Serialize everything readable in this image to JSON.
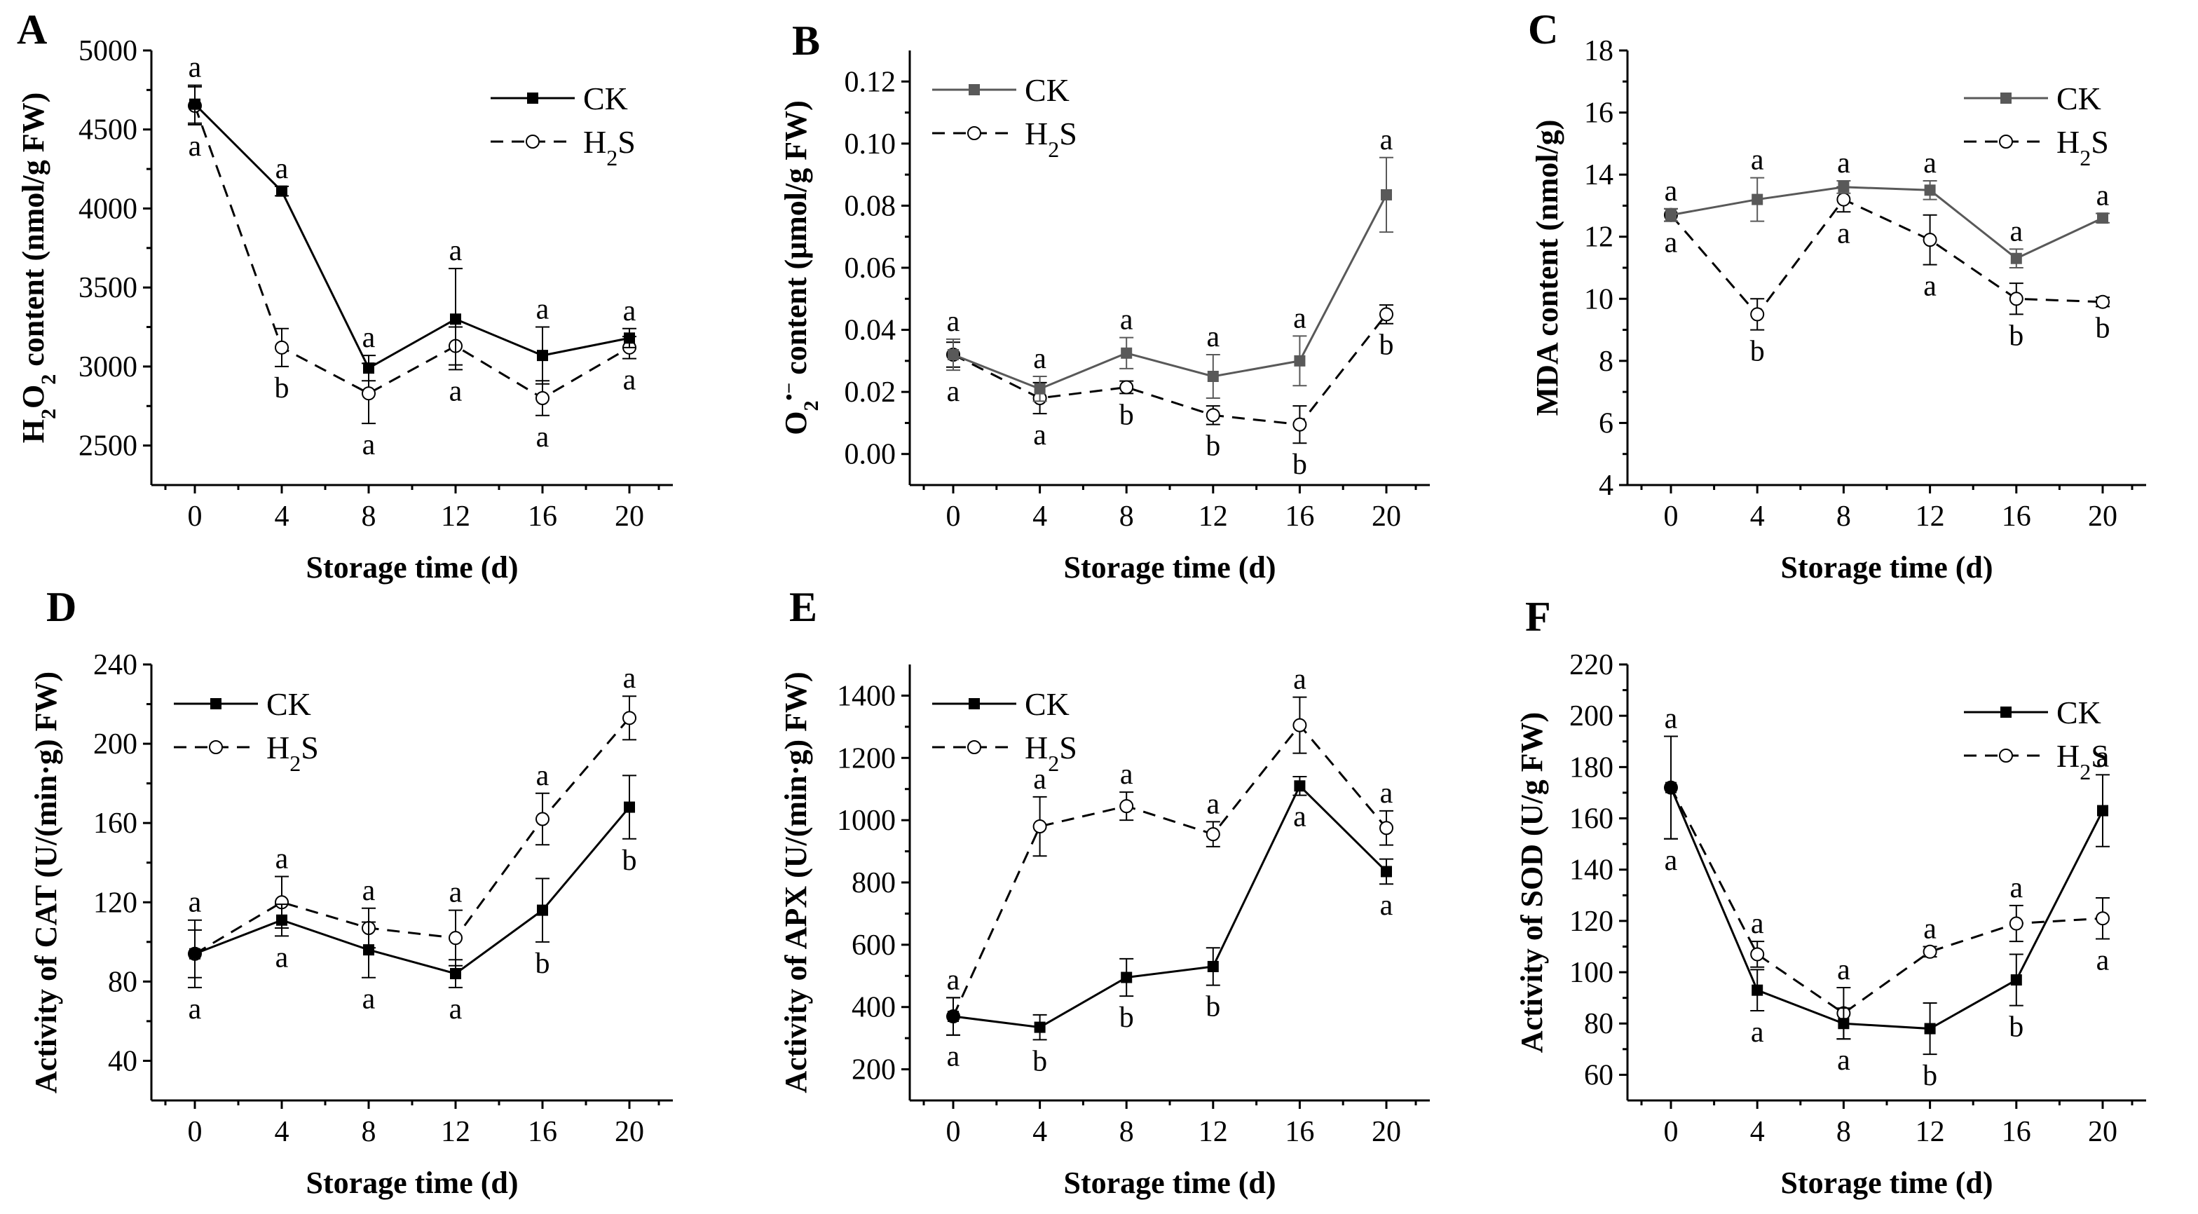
{
  "chart_data": [
    {
      "panel": "A",
      "type": "line",
      "ylabel_main": "H",
      "ylabel_sub1": "2",
      "ylabel_mid": "O",
      "ylabel_sub2": "2",
      "ylabel_rest": "  content (nmol/g FW)",
      "xlabel": "Storage time (d)",
      "x": [
        0,
        4,
        8,
        12,
        16,
        20
      ],
      "ylim": [
        2250,
        5000
      ],
      "yticks": [
        2500,
        3000,
        3500,
        4000,
        4500,
        5000
      ],
      "ytick_labels": [
        "2500",
        "3000",
        "3500",
        "4000",
        "4500",
        "5000"
      ],
      "legend": {
        "position": "top-right",
        "ck_label": "CK",
        "h2s_main": "H",
        "h2s_sub": "2",
        "h2s_rest": "S"
      },
      "ck_color": "#000000",
      "series": [
        {
          "name": "CK",
          "values": [
            4660,
            4110,
            2990,
            3300,
            3070,
            3180
          ],
          "errors": [
            120,
            30,
            80,
            320,
            180,
            60
          ],
          "letters": [
            "a",
            "a",
            "a",
            "a",
            "a",
            "a"
          ]
        },
        {
          "name": "H2S",
          "values": [
            4650,
            3120,
            2830,
            3130,
            2800,
            3120
          ],
          "errors": [
            120,
            120,
            190,
            120,
            110,
            70
          ],
          "letters": [
            "a",
            "b",
            "a",
            "a",
            "a",
            "a"
          ]
        }
      ]
    },
    {
      "panel": "B",
      "type": "line",
      "ylabel_main": "O",
      "ylabel_sub1": "2",
      "ylabel_sup": "•−",
      "ylabel_rest": " content (μmol/g FW)",
      "xlabel": "Storage time (d)",
      "x": [
        0,
        4,
        8,
        12,
        16,
        20
      ],
      "ylim": [
        -0.01,
        0.13
      ],
      "yticks": [
        0.0,
        0.02,
        0.04,
        0.06,
        0.08,
        0.1,
        0.12
      ],
      "ytick_labels": [
        "0.00",
        "0.02",
        "0.04",
        "0.06",
        "0.08",
        "0.10",
        "0.12"
      ],
      "legend": {
        "position": "top-left",
        "ck_label": "CK",
        "h2s_main": "H",
        "h2s_sub": "2",
        "h2s_rest": "S"
      },
      "ck_color": "#595959",
      "series": [
        {
          "name": "CK",
          "values": [
            0.032,
            0.021,
            0.0325,
            0.025,
            0.03,
            0.0835
          ],
          "errors": [
            0.005,
            0.004,
            0.005,
            0.007,
            0.008,
            0.012
          ],
          "letters": [
            "a",
            "a",
            "a",
            "a",
            "a",
            "a"
          ]
        },
        {
          "name": "H2S",
          "values": [
            0.032,
            0.018,
            0.0215,
            0.0125,
            0.0095,
            0.045
          ],
          "errors": [
            0.004,
            0.005,
            0.002,
            0.003,
            0.006,
            0.003
          ],
          "letters": [
            "a",
            "a",
            "b",
            "b",
            "b",
            "b"
          ]
        }
      ]
    },
    {
      "panel": "C",
      "type": "line",
      "ylabel": "MDA content (nmol/g)",
      "xlabel": "Storage time (d)",
      "x": [
        0,
        4,
        8,
        12,
        16,
        20
      ],
      "ylim": [
        4,
        18
      ],
      "yticks": [
        4,
        6,
        8,
        10,
        12,
        14,
        16,
        18
      ],
      "ytick_labels": [
        "4",
        "6",
        "8",
        "10",
        "12",
        "14",
        "16",
        "18"
      ],
      "legend": {
        "position": "top-right",
        "ck_label": "CK",
        "h2s_main": "H",
        "h2s_sub": "2",
        "h2s_rest": "S"
      },
      "ck_color": "#595959",
      "series": [
        {
          "name": "CK",
          "values": [
            12.7,
            13.2,
            13.6,
            13.5,
            11.3,
            12.6
          ],
          "errors": [
            0.2,
            0.7,
            0.2,
            0.3,
            0.3,
            0.15
          ],
          "letters": [
            "a",
            "a",
            "a",
            "a",
            "a",
            "a"
          ]
        },
        {
          "name": "H2S",
          "values": [
            12.7,
            9.5,
            13.2,
            11.9,
            10.0,
            9.9
          ],
          "errors": [
            0.2,
            0.5,
            0.4,
            0.8,
            0.5,
            0.15
          ],
          "letters": [
            "a",
            "b",
            "a",
            "a",
            "b",
            "b"
          ]
        }
      ]
    },
    {
      "panel": "D",
      "type": "line",
      "ylabel": "Activity of CAT (U/(min·g) FW)",
      "xlabel": "Storage time (d)",
      "x": [
        0,
        4,
        8,
        12,
        16,
        20
      ],
      "ylim": [
        20,
        240
      ],
      "yticks": [
        40,
        80,
        120,
        160,
        200,
        240
      ],
      "ytick_labels": [
        "40",
        "80",
        "120",
        "160",
        "200",
        "240"
      ],
      "legend": {
        "position": "top-left",
        "ck_label": "CK",
        "h2s_main": "H",
        "h2s_sub": "2",
        "h2s_rest": "S"
      },
      "ck_color": "#000000",
      "series": [
        {
          "name": "CK",
          "values": [
            94,
            111,
            96,
            84,
            116,
            168
          ],
          "errors": [
            17,
            8,
            14,
            7,
            16,
            16
          ],
          "letters": [
            "a",
            "a",
            "a",
            "a",
            "b",
            "b"
          ]
        },
        {
          "name": "H2S",
          "values": [
            94,
            120,
            107,
            102,
            162,
            213
          ],
          "errors": [
            12,
            13,
            10,
            14,
            13,
            11
          ],
          "letters": [
            "a",
            "a",
            "a",
            "a",
            "a",
            "a"
          ]
        }
      ]
    },
    {
      "panel": "E",
      "type": "line",
      "ylabel": "Activity of APX (U/(min·g) FW)",
      "xlabel": "Storage time (d)",
      "x": [
        0,
        4,
        8,
        12,
        16,
        20
      ],
      "ylim": [
        100,
        1500
      ],
      "yticks": [
        200,
        400,
        600,
        800,
        1000,
        1200,
        1400
      ],
      "ytick_labels": [
        "200",
        "400",
        "600",
        "800",
        "1000",
        "1200",
        "1400"
      ],
      "legend": {
        "position": "top-left",
        "ck_label": "CK",
        "h2s_main": "H",
        "h2s_sub": "2",
        "h2s_rest": "S"
      },
      "ck_color": "#000000",
      "series": [
        {
          "name": "CK",
          "values": [
            370,
            335,
            495,
            530,
            1110,
            835
          ],
          "errors": [
            60,
            40,
            60,
            60,
            30,
            40
          ],
          "letters": [
            "a",
            "b",
            "b",
            "b",
            "a",
            "a"
          ]
        },
        {
          "name": "H2S",
          "values": [
            370,
            980,
            1045,
            955,
            1305,
            975
          ],
          "errors": [
            60,
            95,
            45,
            40,
            90,
            55
          ],
          "letters": [
            "a",
            "a",
            "a",
            "a",
            "a",
            "a"
          ]
        }
      ]
    },
    {
      "panel": "F",
      "type": "line",
      "ylabel": "Activity of SOD (U/g FW)",
      "xlabel": "Storage time (d)",
      "x": [
        0,
        4,
        8,
        12,
        16,
        20
      ],
      "ylim": [
        50,
        220
      ],
      "yticks": [
        60,
        80,
        100,
        120,
        140,
        160,
        180,
        200,
        220
      ],
      "ytick_labels": [
        "60",
        "80",
        "100",
        "120",
        "140",
        "160",
        "180",
        "200",
        "220"
      ],
      "legend": {
        "position": "top-right",
        "ck_label": "CK",
        "h2s_main": "H",
        "h2s_sub": "2",
        "h2s_rest": "S"
      },
      "ck_color": "#000000",
      "series": [
        {
          "name": "CK",
          "values": [
            172,
            93,
            80,
            78,
            97,
            163
          ],
          "errors": [
            20,
            8,
            6,
            10,
            10,
            14
          ],
          "letters": [
            "a",
            "a",
            "a",
            "b",
            "b",
            "a"
          ]
        },
        {
          "name": "H2S",
          "values": [
            172,
            107,
            84,
            108,
            119,
            121
          ],
          "errors": [
            20,
            5,
            10,
            2,
            7,
            8
          ],
          "letters": [
            "a",
            "a",
            "a",
            "a",
            "a",
            "a"
          ]
        }
      ]
    }
  ]
}
